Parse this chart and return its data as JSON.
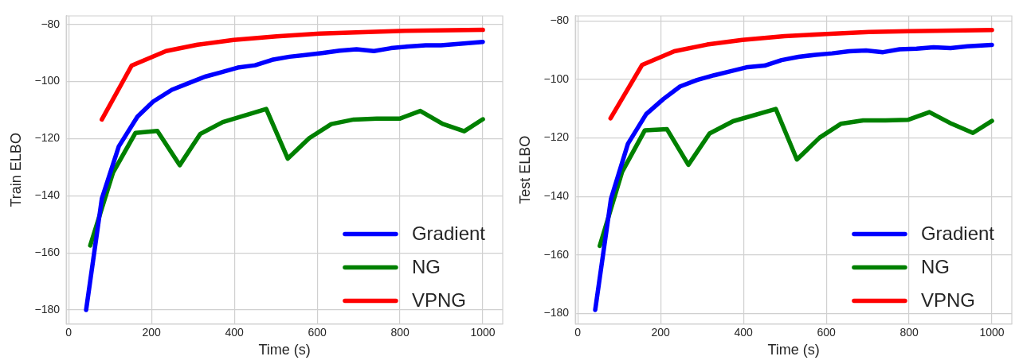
{
  "chart_data": [
    {
      "type": "line",
      "xlabel": "Time (s)",
      "ylabel": "Train ELBO",
      "xlim": [
        -6,
        1048
      ],
      "ylim": [
        -184.9,
        -77
      ],
      "xticks": [
        0,
        200,
        400,
        600,
        800,
        1000
      ],
      "yticks": [
        {
          "value": -180,
          "label": "−180"
        },
        {
          "value": -160,
          "label": "−160"
        },
        {
          "value": -140,
          "label": "−140"
        },
        {
          "value": -120,
          "label": "−120"
        },
        {
          "value": -100,
          "label": "−100"
        },
        {
          "value": -80,
          "label": "−80"
        }
      ],
      "grid": true,
      "legend": "bottom right",
      "line_style": "solid",
      "marker": "none",
      "series": [
        {
          "name": "Gradient",
          "color": "#0000ff",
          "x": [
            42,
            80,
            121,
            166,
            204,
            249,
            287,
            329,
            367,
            408,
            450,
            491,
            533,
            571,
            612,
            654,
            695,
            737,
            778,
            820,
            862,
            899,
            941,
            1000
          ],
          "values": [
            -180,
            -141,
            -122.7,
            -112.3,
            -107,
            -102.9,
            -100.7,
            -98.3,
            -96.8,
            -95.1,
            -94.3,
            -92.4,
            -91.3,
            -90.7,
            -90,
            -89.2,
            -88.7,
            -89.3,
            -88.3,
            -87.7,
            -87.3,
            -87.3,
            -86.8,
            -86.1
          ]
        },
        {
          "name": "NG",
          "color": "#008000",
          "x": [
            52,
            107,
            161,
            214,
            268,
            318,
            372,
            477,
            529,
            581,
            634,
            688,
            744,
            799,
            849,
            903,
            955,
            1000
          ],
          "values": [
            -157.4,
            -131.9,
            -118,
            -117.3,
            -129.3,
            -118.3,
            -114.2,
            -109.6,
            -127,
            -119.8,
            -114.9,
            -113.3,
            -113,
            -113,
            -110.3,
            -114.8,
            -117.4,
            -113.2
          ]
        },
        {
          "name": "VPNG",
          "color": "#ff0000",
          "x": [
            80,
            152,
            235,
            311,
            398,
            502,
            606,
            709,
            813,
            1000
          ],
          "values": [
            -113.3,
            -94.4,
            -89.3,
            -87.1,
            -85.4,
            -84.2,
            -83.2,
            -82.7,
            -82.2,
            -81.9
          ]
        }
      ]
    },
    {
      "type": "line",
      "xlabel": "Time (s)",
      "ylabel": "Test ELBO",
      "xlim": [
        -6,
        1048
      ],
      "ylim": [
        -183.6,
        -78.3
      ],
      "xticks": [
        0,
        200,
        400,
        600,
        800,
        1000
      ],
      "yticks": [
        {
          "value": -180,
          "label": "−180"
        },
        {
          "value": -160,
          "label": "−160"
        },
        {
          "value": -140,
          "label": "−140"
        },
        {
          "value": -120,
          "label": "−120"
        },
        {
          "value": -100,
          "label": "−100"
        },
        {
          "value": -80,
          "label": "−80"
        }
      ],
      "grid": true,
      "legend": "bottom right",
      "line_style": "solid",
      "marker": "none",
      "series": [
        {
          "name": "Gradient",
          "color": "#0000ff",
          "x": [
            42,
            80,
            121,
            165,
            206,
            247,
            288,
            329,
            369,
            410,
            451,
            492,
            533,
            574,
            614,
            655,
            696,
            737,
            777,
            818,
            859,
            900,
            941,
            1000
          ],
          "values": [
            -178.8,
            -140.9,
            -122,
            -111.9,
            -106.8,
            -102.4,
            -100.2,
            -98.6,
            -97.2,
            -95.8,
            -95.3,
            -93.4,
            -92.3,
            -91.6,
            -91.1,
            -90.4,
            -90.1,
            -90.7,
            -89.7,
            -89.5,
            -89,
            -89.3,
            -88.7,
            -88.2
          ]
        },
        {
          "name": "NG",
          "color": "#008000",
          "x": [
            53,
            107,
            162,
            215,
            267,
            318,
            375,
            478,
            529,
            584,
            635,
            689,
            743,
            798,
            849,
            903,
            954,
            1000
          ],
          "values": [
            -156.9,
            -131.6,
            -117.4,
            -117,
            -129.2,
            -118.5,
            -114.3,
            -110.1,
            -127.4,
            -119.9,
            -115.2,
            -114,
            -114,
            -113.8,
            -111.2,
            -115.2,
            -118.3,
            -114.2
          ]
        },
        {
          "name": "VPNG",
          "color": "#ff0000",
          "x": [
            79,
            155,
            233,
            312,
            397,
            499,
            601,
            703,
            798,
            1000
          ],
          "values": [
            -113.3,
            -95.1,
            -90.4,
            -88.1,
            -86.5,
            -85.2,
            -84.5,
            -83.8,
            -83.5,
            -83.1
          ]
        }
      ]
    }
  ]
}
